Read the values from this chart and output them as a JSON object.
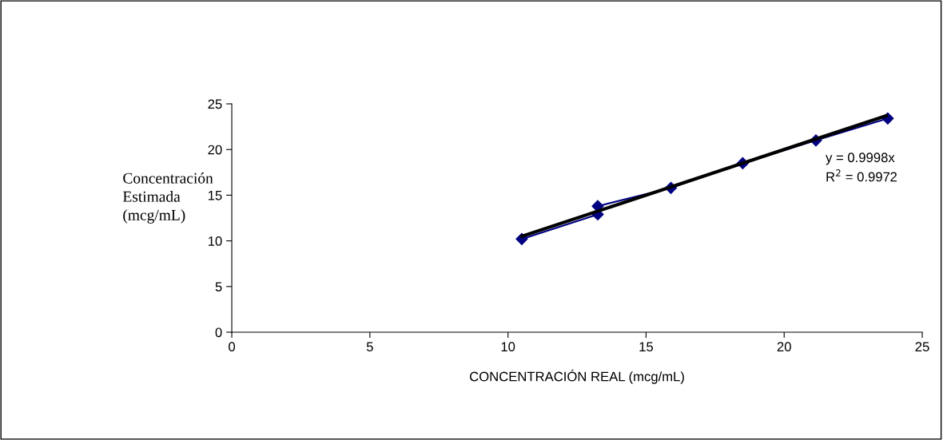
{
  "chart_data": {
    "type": "line",
    "xlabel": "CONCENTRACIÓN REAL (mcg/mL)",
    "ylabel": "Concentración\nEstimada\n(mcg/mL)",
    "series": [
      {
        "color": "#000080",
        "marker": "diamond",
        "x": [
          10.5,
          13.25,
          13.25,
          15.9,
          18.5,
          21.15,
          23.75
        ],
        "values": [
          10.2,
          12.9,
          13.8,
          15.8,
          18.5,
          21.0,
          23.4
        ]
      },
      {
        "color": "#000000",
        "marker": "none",
        "x": [
          10.5,
          23.7
        ],
        "values": [
          10.5,
          23.7
        ]
      }
    ],
    "annotations": [
      "y = 0.9998x",
      "R$^{2}$ = 0.9972"
    ],
    "xlim": [
      0,
      25
    ],
    "xticks": [
      0,
      5,
      10,
      15,
      20,
      25
    ],
    "ylim": [
      0,
      25
    ],
    "yticks": [
      0,
      5,
      10,
      15,
      20,
      25
    ],
    "grid": false,
    "legend": false,
    "line_style": "solid"
  }
}
